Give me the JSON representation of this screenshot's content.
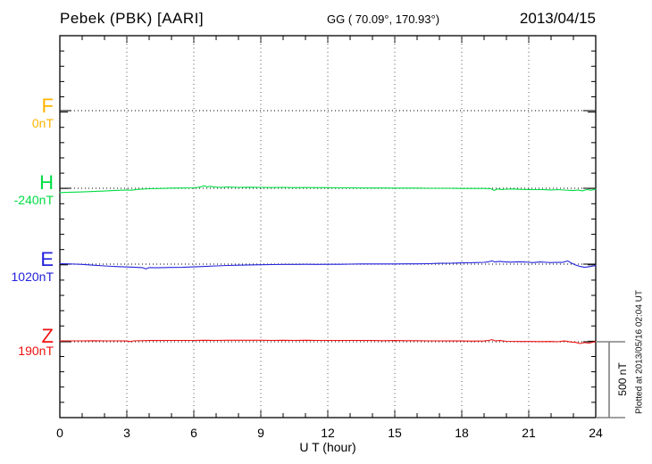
{
  "header": {
    "station_title": "Pebek (PBK)  [AARI]",
    "coordinates": "GG ( 70.09°, 170.93°)",
    "date": "2013/04/15"
  },
  "footer": {
    "xlabel": "U T (hour)"
  },
  "scale_bar": {
    "label": "500 nT",
    "color": "#808080"
  },
  "watermark": {
    "text": "Plotted at 2013/05/16 02:04 UT"
  },
  "chart_data": {
    "type": "line",
    "title": "Pebek (PBK) [AARI] magnetogram 2013/04/15",
    "xlabel": "U T (hour)",
    "x_range": [
      0,
      24
    ],
    "x_ticks": [
      0,
      3,
      6,
      9,
      12,
      15,
      18,
      21,
      24
    ],
    "x_minor_step_hours": 1,
    "grid": "vertical dotted lines at 3-hour intervals; dotted horizontal baseline per component",
    "legend_position": "left margin, one colored label per trace",
    "scale_bar_nT": 500,
    "frame_color": "#000000",
    "baseline_color": "#333333",
    "series": [
      {
        "name": "F",
        "baseline_label": "0nT",
        "baseline_nT": 0,
        "color": "#FFB400",
        "points_dnT": []
      },
      {
        "name": "H",
        "baseline_label": "-240nT",
        "baseline_nT": -240,
        "color": "#00DD44",
        "points_dnT": [
          [
            0,
            -28
          ],
          [
            0.5,
            -26
          ],
          [
            1,
            -24
          ],
          [
            1.5,
            -21
          ],
          [
            2,
            -18
          ],
          [
            2.5,
            -14
          ],
          [
            3,
            -11
          ],
          [
            3.2,
            -13
          ],
          [
            3.5,
            -7
          ],
          [
            4,
            -3
          ],
          [
            4.5,
            -1
          ],
          [
            5,
            1
          ],
          [
            5.5,
            2
          ],
          [
            6,
            3
          ],
          [
            6.3,
            8
          ],
          [
            6.45,
            17
          ],
          [
            6.6,
            9
          ],
          [
            6.75,
            13
          ],
          [
            6.9,
            8
          ],
          [
            7.2,
            6
          ],
          [
            7.5,
            8
          ],
          [
            8,
            6
          ],
          [
            8.5,
            7
          ],
          [
            9,
            6
          ],
          [
            9.5,
            5
          ],
          [
            10,
            6
          ],
          [
            10.5,
            4
          ],
          [
            11,
            5
          ],
          [
            11.5,
            4
          ],
          [
            12,
            4
          ],
          [
            12.5,
            3
          ],
          [
            13,
            3
          ],
          [
            13.5,
            2
          ],
          [
            14,
            2
          ],
          [
            14.5,
            2
          ],
          [
            15,
            1
          ],
          [
            15.5,
            1
          ],
          [
            16,
            1
          ],
          [
            16.5,
            0
          ],
          [
            17,
            0
          ],
          [
            17.5,
            0
          ],
          [
            18,
            -1
          ],
          [
            18.5,
            -1
          ],
          [
            19,
            -1
          ],
          [
            19.3,
            -3
          ],
          [
            19.45,
            -14
          ],
          [
            19.6,
            -5
          ],
          [
            19.8,
            -8
          ],
          [
            20,
            -6
          ],
          [
            20.3,
            -5
          ],
          [
            20.6,
            -7
          ],
          [
            21,
            -8
          ],
          [
            21.3,
            -9
          ],
          [
            21.6,
            -8
          ],
          [
            22,
            -11
          ],
          [
            22.3,
            -9
          ],
          [
            22.6,
            -12
          ],
          [
            23,
            -15
          ],
          [
            23.2,
            -11
          ],
          [
            23.4,
            -17
          ],
          [
            23.6,
            -9
          ],
          [
            23.8,
            -13
          ],
          [
            24,
            -6
          ]
        ]
      },
      {
        "name": "E",
        "baseline_label": "1020nT",
        "baseline_nT": 1020,
        "color": "#2222DD",
        "points_dnT": [
          [
            0,
            3
          ],
          [
            0.3,
            2
          ],
          [
            0.7,
            0
          ],
          [
            1,
            -2
          ],
          [
            1.5,
            -7
          ],
          [
            2,
            -12
          ],
          [
            2.5,
            -16
          ],
          [
            3,
            -19
          ],
          [
            3.4,
            -21
          ],
          [
            3.7,
            -23
          ],
          [
            3.85,
            -32
          ],
          [
            4,
            -23
          ],
          [
            4.3,
            -24
          ],
          [
            4.6,
            -23
          ],
          [
            5,
            -22
          ],
          [
            5.5,
            -21
          ],
          [
            6,
            -18
          ],
          [
            6.5,
            -15
          ],
          [
            7,
            -12
          ],
          [
            7.5,
            -9
          ],
          [
            8,
            -7
          ],
          [
            8.5,
            -5
          ],
          [
            9,
            -4
          ],
          [
            9.5,
            -3
          ],
          [
            10,
            -2
          ],
          [
            10.5,
            -2
          ],
          [
            11,
            -1
          ],
          [
            11.5,
            -2
          ],
          [
            12,
            -1
          ],
          [
            12.5,
            -1
          ],
          [
            13,
            0
          ],
          [
            13.5,
            1
          ],
          [
            14,
            1
          ],
          [
            14.5,
            1
          ],
          [
            15,
            1
          ],
          [
            15.5,
            2
          ],
          [
            16,
            2
          ],
          [
            16.5,
            3
          ],
          [
            17,
            5
          ],
          [
            17.5,
            6
          ],
          [
            18,
            8
          ],
          [
            18.3,
            9
          ],
          [
            18.6,
            10
          ],
          [
            19,
            12
          ],
          [
            19.2,
            15
          ],
          [
            19.35,
            21
          ],
          [
            19.5,
            14
          ],
          [
            19.7,
            18
          ],
          [
            19.9,
            15
          ],
          [
            20.2,
            13
          ],
          [
            20.5,
            15
          ],
          [
            20.8,
            14
          ],
          [
            21,
            12
          ],
          [
            21.2,
            10
          ],
          [
            21.5,
            14
          ],
          [
            21.8,
            12
          ],
          [
            22,
            10
          ],
          [
            22.2,
            12
          ],
          [
            22.5,
            11
          ],
          [
            22.75,
            21
          ],
          [
            22.9,
            7
          ],
          [
            23.1,
            -6
          ],
          [
            23.3,
            -15
          ],
          [
            23.5,
            -21
          ],
          [
            23.7,
            -17
          ],
          [
            23.9,
            -12
          ],
          [
            24,
            -10
          ]
        ]
      },
      {
        "name": "Z",
        "baseline_label": "190nT",
        "baseline_nT": 190,
        "color": "#EE1111",
        "points_dnT": [
          [
            0,
            5
          ],
          [
            0.5,
            6
          ],
          [
            1,
            6
          ],
          [
            1.5,
            7
          ],
          [
            2,
            6
          ],
          [
            2.5,
            6
          ],
          [
            3,
            5
          ],
          [
            3.15,
            1
          ],
          [
            3.3,
            6
          ],
          [
            4,
            8
          ],
          [
            4.5,
            8
          ],
          [
            5,
            9
          ],
          [
            5.5,
            9
          ],
          [
            6,
            9
          ],
          [
            6.5,
            10
          ],
          [
            7,
            9
          ],
          [
            7.5,
            10
          ],
          [
            8,
            10
          ],
          [
            8.5,
            10
          ],
          [
            9,
            10
          ],
          [
            9.5,
            9
          ],
          [
            10,
            10
          ],
          [
            10.5,
            9
          ],
          [
            11,
            10
          ],
          [
            11.5,
            9
          ],
          [
            12,
            9
          ],
          [
            12.5,
            8
          ],
          [
            13,
            9
          ],
          [
            13.5,
            8
          ],
          [
            14,
            8
          ],
          [
            14.5,
            7
          ],
          [
            15,
            8
          ],
          [
            15.5,
            7
          ],
          [
            16,
            7
          ],
          [
            16.5,
            6
          ],
          [
            17,
            6
          ],
          [
            17.5,
            5
          ],
          [
            18,
            5
          ],
          [
            18.5,
            4
          ],
          [
            19,
            5
          ],
          [
            19.2,
            8
          ],
          [
            19.35,
            14
          ],
          [
            19.5,
            6
          ],
          [
            19.7,
            8
          ],
          [
            20,
            3
          ],
          [
            20.5,
            2
          ],
          [
            21,
            2
          ],
          [
            21.5,
            1
          ],
          [
            22,
            2
          ],
          [
            22.3,
            0
          ],
          [
            22.6,
            5
          ],
          [
            22.9,
            -2
          ],
          [
            23.1,
            -4
          ],
          [
            23.3,
            -12
          ],
          [
            23.5,
            -5
          ],
          [
            23.7,
            -9
          ],
          [
            23.9,
            -2
          ],
          [
            24,
            1
          ]
        ]
      }
    ]
  }
}
